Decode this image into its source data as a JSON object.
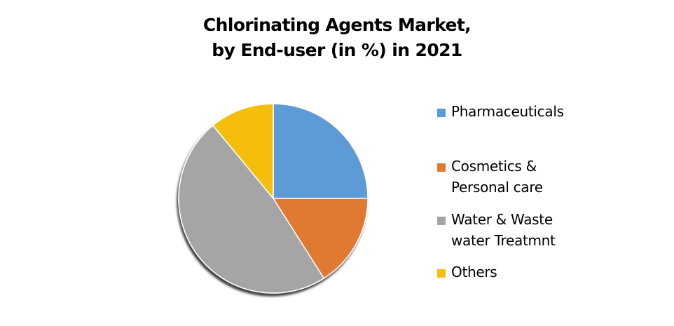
{
  "chart_data": {
    "type": "pie",
    "title": "Chlorinating Agents Market, by End-user (in %) in 2021",
    "title_lines": [
      "Chlorinating Agents Market,",
      "by End-user (in %) in 2021"
    ],
    "categories": [
      "Pharmaceuticals",
      "Cosmetics & Personal care",
      "Water & Waste water Treatmnt",
      "Others"
    ],
    "values": [
      25,
      16,
      48,
      11
    ],
    "colors": [
      "#5B9BD5",
      "#E07A30",
      "#A5A5A5",
      "#F5BE0E"
    ],
    "legend_position": "right",
    "start_angle_deg": 0,
    "direction": "clockwise",
    "data_labels": false
  },
  "legend": {
    "items": [
      {
        "lines": [
          "Pharmaceuticals"
        ],
        "color": "#5B9BD5"
      },
      {
        "lines": [
          "Cosmetics &",
          "Personal care"
        ],
        "color": "#E07A30"
      },
      {
        "lines": [
          "Water & Waste",
          "water Treatmnt"
        ],
        "color": "#A5A5A5"
      },
      {
        "lines": [
          "Others"
        ],
        "color": "#F5BE0E"
      }
    ]
  }
}
